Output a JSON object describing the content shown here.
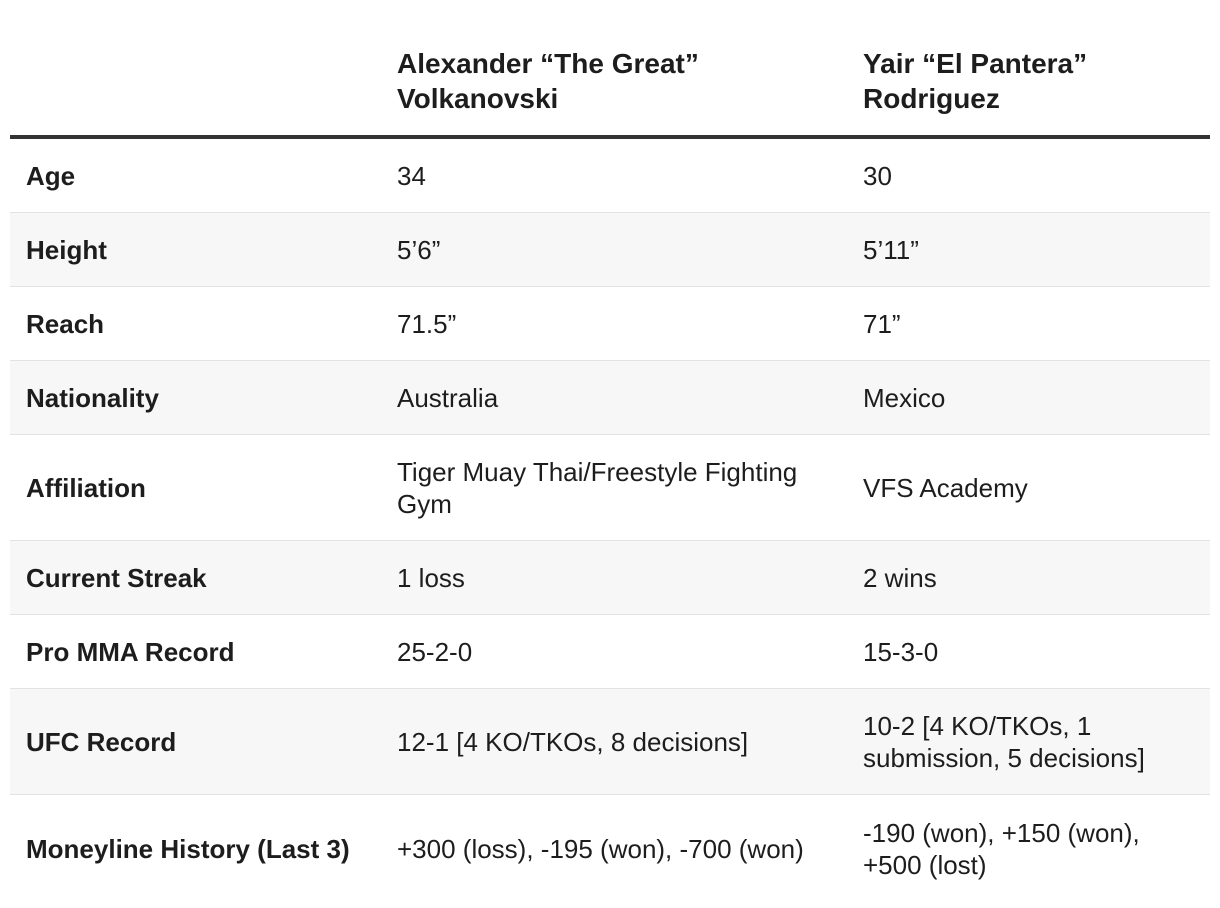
{
  "table": {
    "header": {
      "empty": "",
      "fighter1": {
        "line1": "Alexander “The Great”",
        "line2": "Volkanovski"
      },
      "fighter2": {
        "line1": "Yair “El Pantera”",
        "line2": "Rodriguez"
      }
    },
    "rows": [
      {
        "label": "Age",
        "f1": "34",
        "f2": "30"
      },
      {
        "label": "Height",
        "f1": "5’6”",
        "f2": "5’11”"
      },
      {
        "label": "Reach",
        "f1": "71.5”",
        "f2": "71”"
      },
      {
        "label": "Nationality",
        "f1": "Australia",
        "f2": "Mexico"
      },
      {
        "label": "Affiliation",
        "f1": "Tiger Muay Thai/Freestyle Fighting Gym",
        "f2": "VFS Academy"
      },
      {
        "label": "Current Streak",
        "f1": "1 loss",
        "f2": "2 wins"
      },
      {
        "label": "Pro MMA Record",
        "f1": "25-2-0",
        "f2": "15-3-0"
      },
      {
        "label": "UFC Record",
        "f1": "12-1 [4 KO/TKOs, 8 decisions]",
        "f2": "10-2 [4 KO/TKOs, 1 submission, 5 decisions]"
      },
      {
        "label": "Moneyline History (Last 3)",
        "f1": "+300 (loss), -195 (won), -700 (won)",
        "f2": "-190 (won), +150 (won), +500 (lost)"
      }
    ]
  },
  "colors": {
    "header_rule": "#333333",
    "row_alt_background": "#f7f7f7",
    "row_divider": "#e2e2e2",
    "text": "#1d1d1d"
  }
}
